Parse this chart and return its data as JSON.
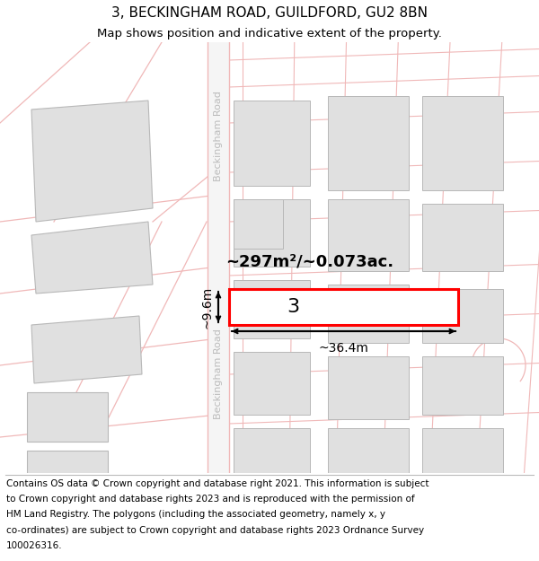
{
  "title_line1": "3, BECKINGHAM ROAD, GUILDFORD, GU2 8BN",
  "title_line2": "Map shows position and indicative extent of the property.",
  "footer_lines": [
    "Contains OS data © Crown copyright and database right 2021. This information is subject",
    "to Crown copyright and database rights 2023 and is reproduced with the permission of",
    "HM Land Registry. The polygons (including the associated geometry, namely x, y",
    "co-ordinates) are subject to Crown copyright and database rights 2023 Ordnance Survey",
    "100026316."
  ],
  "map_bg": "#ffffff",
  "road_line_color": "#f0b8b8",
  "building_fill": "#e0e0e0",
  "building_edge": "#b8b8b8",
  "highlight_fill": "#ffffff",
  "highlight_edge": "#ff0000",
  "road_label": "Beckingham Road",
  "area_label": "~297m²/~0.073ac.",
  "property_number": "3",
  "dim_width": "~36.4m",
  "dim_height": "~9.6m",
  "title_fontsize": 11,
  "subtitle_fontsize": 9.5,
  "footer_fontsize": 7.5,
  "road_label_color": "#bbbbbb",
  "road_label_fontsize": 8
}
